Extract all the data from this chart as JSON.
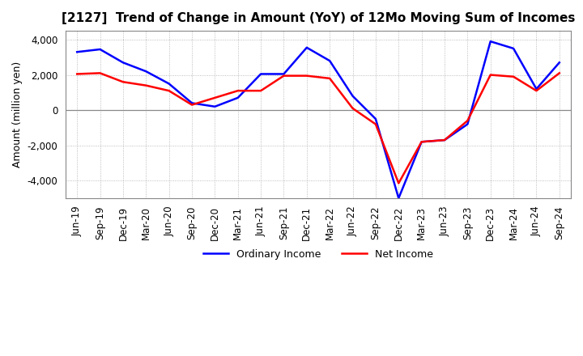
{
  "title": "[2127]  Trend of Change in Amount (YoY) of 12Mo Moving Sum of Incomes",
  "ylabel": "Amount (million yen)",
  "ylim": [
    -5000,
    4500
  ],
  "yticks": [
    -4000,
    -2000,
    0,
    2000,
    4000
  ],
  "background_color": "#ffffff",
  "plot_bg_color": "#ffffff",
  "grid_color": "#aaaaaa",
  "labels": [
    "Jun-19",
    "Sep-19",
    "Dec-19",
    "Mar-20",
    "Jun-20",
    "Sep-20",
    "Dec-20",
    "Mar-21",
    "Jun-21",
    "Sep-21",
    "Dec-21",
    "Mar-22",
    "Jun-22",
    "Sep-22",
    "Dec-22",
    "Mar-23",
    "Jun-23",
    "Sep-23",
    "Dec-23",
    "Mar-24",
    "Jun-24",
    "Sep-24"
  ],
  "ordinary_income": [
    3300,
    3450,
    2700,
    2200,
    1500,
    400,
    200,
    700,
    2050,
    2050,
    3550,
    2800,
    800,
    -500,
    -5000,
    -1800,
    -1700,
    -800,
    3900,
    3500,
    1200,
    2700
  ],
  "net_income": [
    2050,
    2100,
    1600,
    1400,
    1100,
    300,
    700,
    1100,
    1100,
    1950,
    1950,
    1800,
    100,
    -800,
    -4150,
    -1800,
    -1700,
    -600,
    2000,
    1900,
    1100,
    2100
  ],
  "ordinary_color": "#0000ff",
  "net_color": "#ff0000",
  "line_width": 1.8,
  "title_fontsize": 11,
  "axis_fontsize": 9,
  "tick_fontsize": 8.5
}
